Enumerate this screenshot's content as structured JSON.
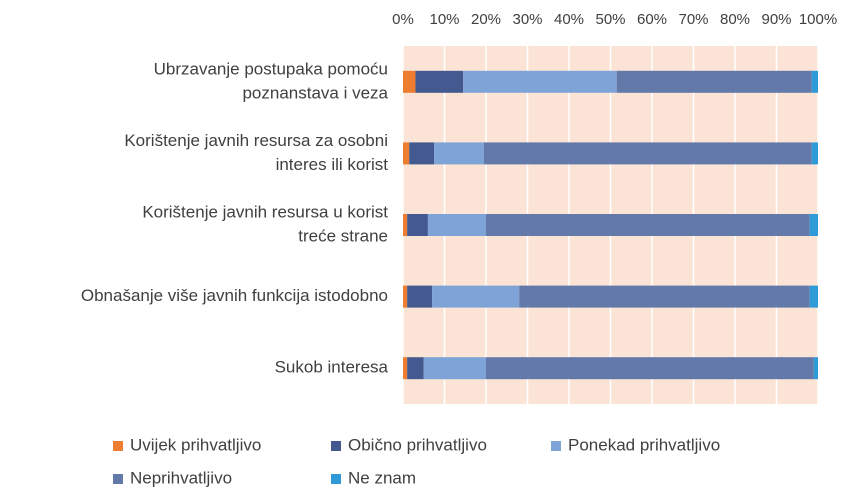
{
  "chart_data": {
    "type": "stacked-bar-horizontal",
    "categories": [
      [
        "Ubrzavanje postupaka pomoću",
        "poznanstava i veza"
      ],
      [
        "Korištenje javnih resursa za osobni",
        "interes ili korist"
      ],
      [
        "Korištenje javnih resursa u korist",
        "treće strane"
      ],
      [
        "Obnašanje više javnih funkcija istodobno"
      ],
      [
        "Sukob interesa"
      ]
    ],
    "series": [
      {
        "name": "Uvijek prihvatljivo",
        "color": "#ed7d31",
        "values": [
          3,
          1.5,
          1,
          1,
          1
        ]
      },
      {
        "name": "Obično prihvatljivo",
        "color": "#44598f",
        "values": [
          11.5,
          6,
          5,
          6,
          4
        ]
      },
      {
        "name": "Ponekad prihvatljivo",
        "color": "#7ea3d6",
        "values": [
          37,
          12,
          14,
          21,
          15
        ]
      },
      {
        "name": "Neprihvatljivo",
        "color": "#6379aa",
        "values": [
          47,
          79,
          78,
          70,
          79
        ]
      },
      {
        "name": "Ne znam",
        "color": "#2f9ad8",
        "values": [
          1.5,
          1.5,
          2,
          2,
          1
        ]
      }
    ],
    "xlim": [
      0,
      100
    ],
    "xticks": [
      {
        "value": 0,
        "label": "0%"
      },
      {
        "value": 10,
        "label": "10%"
      },
      {
        "value": 20,
        "label": "20%"
      },
      {
        "value": 30,
        "label": "30%"
      },
      {
        "value": 40,
        "label": "40%"
      },
      {
        "value": 50,
        "label": "50%"
      },
      {
        "value": 60,
        "label": "60%"
      },
      {
        "value": 70,
        "label": "70%"
      },
      {
        "value": 80,
        "label": "80%"
      },
      {
        "value": 90,
        "label": "90%"
      },
      {
        "value": 100,
        "label": "100%"
      }
    ],
    "grid": true
  }
}
